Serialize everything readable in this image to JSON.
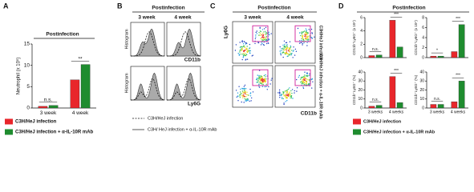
{
  "figure": {
    "panel_labels": [
      "A",
      "B",
      "C",
      "D"
    ]
  },
  "chart_data": [
    {
      "type": "bar",
      "header": "Postinfection",
      "y_label": "Neutrophil (x 10⁵)",
      "categories": [
        "3 week",
        "4 week"
      ],
      "series": [
        {
          "name": "C3H/HeJ infection",
          "color": "#e8262b",
          "values": [
            0.4,
            6.6
          ]
        },
        {
          "name": "C3H/HeJ infection + α-IL-10R mAb",
          "color": "#1f8c2f",
          "values": [
            0.6,
            10.2
          ]
        }
      ],
      "ylim": [
        0,
        15
      ],
      "yticks": [
        0,
        5,
        10,
        15
      ],
      "annotations": [
        "n.s.",
        "**"
      ]
    },
    {
      "type": "bar",
      "y_label": "CD11b⁺Ly6G⁺ (x 10⁴)",
      "categories": [
        null,
        null
      ],
      "series": [
        {
          "name": "C3H/HeJ infection",
          "color": "#e8262b",
          "values": [
            0.3,
            5.6
          ]
        },
        {
          "name": "C3H/HeJ infection + α-IL-10R mAb",
          "color": "#1f8c2f",
          "values": [
            0.4,
            1.6
          ]
        }
      ],
      "ylim": [
        0,
        6
      ],
      "yticks": [
        0,
        2,
        4,
        6
      ],
      "annotations": [
        "n.s.",
        "***"
      ]
    },
    {
      "type": "bar",
      "y_label": "CD11b⁺Ly6G⁺ (x 10⁴)",
      "categories": [
        null,
        null
      ],
      "series": [
        {
          "name": "C3H/HeJ infection",
          "color": "#e8262b",
          "values": [
            0.3,
            1.2
          ]
        },
        {
          "name": "C3H/HeJ infection + α-IL-10R mAb",
          "color": "#1f8c2f",
          "values": [
            0.3,
            6.6
          ]
        }
      ],
      "ylim": [
        0,
        8
      ],
      "yticks": [
        0,
        2,
        4,
        6,
        8
      ],
      "annotations": [
        "*",
        "***"
      ]
    },
    {
      "type": "bar",
      "y_label": "CD11b⁺Ly6G⁺ (%)",
      "categories": [
        "3 weeks",
        "4 weeks"
      ],
      "series": [
        {
          "name": "C3H/HeJ infection",
          "color": "#e8262b",
          "values": [
            2,
            35
          ]
        },
        {
          "name": "C3H/HeJ infection + α-IL-10R mAb",
          "color": "#1f8c2f",
          "values": [
            3,
            6
          ]
        }
      ],
      "ylim": [
        0,
        40
      ],
      "yticks": [
        0,
        10,
        20,
        30,
        40
      ],
      "annotations": [
        "n.s.",
        "***"
      ]
    },
    {
      "type": "bar",
      "y_label": "CD11b⁺Ly6G⁺ (%)",
      "categories": [
        "3 weeks",
        "4 weeks"
      ],
      "series": [
        {
          "name": "C3H/HeJ infection",
          "color": "#e8262b",
          "values": [
            4,
            7
          ]
        },
        {
          "name": "C3H/HeJ infection + α-IL-10R mAb",
          "color": "#1f8c2f",
          "values": [
            4,
            30
          ]
        }
      ],
      "ylim": [
        0,
        40
      ],
      "yticks": [
        0,
        10,
        20,
        30,
        40
      ],
      "annotations": [
        "n.s.",
        "***"
      ]
    }
  ],
  "panel_b": {
    "header": "Postinfection",
    "columns": [
      "3 week",
      "4 week"
    ],
    "row_y_labels": [
      "Histogram",
      "Histogram"
    ],
    "row_x_labels": [
      "CD11b",
      "Ly6G"
    ],
    "legend": [
      "C3H/HeJ infection",
      "C3H/ HeJ infection + α-IL-10R mAb"
    ]
  },
  "panel_c": {
    "header": "Postinfection",
    "columns": [
      "3 week",
      "4 week"
    ],
    "y_label": "Ly6G",
    "x_label": "CD11b",
    "row_labels": [
      "C3H/HeJ infection",
      "C3H/HeJ infection + α-IL-10R mAb"
    ]
  },
  "panel_d": {
    "header": "Postinfection"
  }
}
